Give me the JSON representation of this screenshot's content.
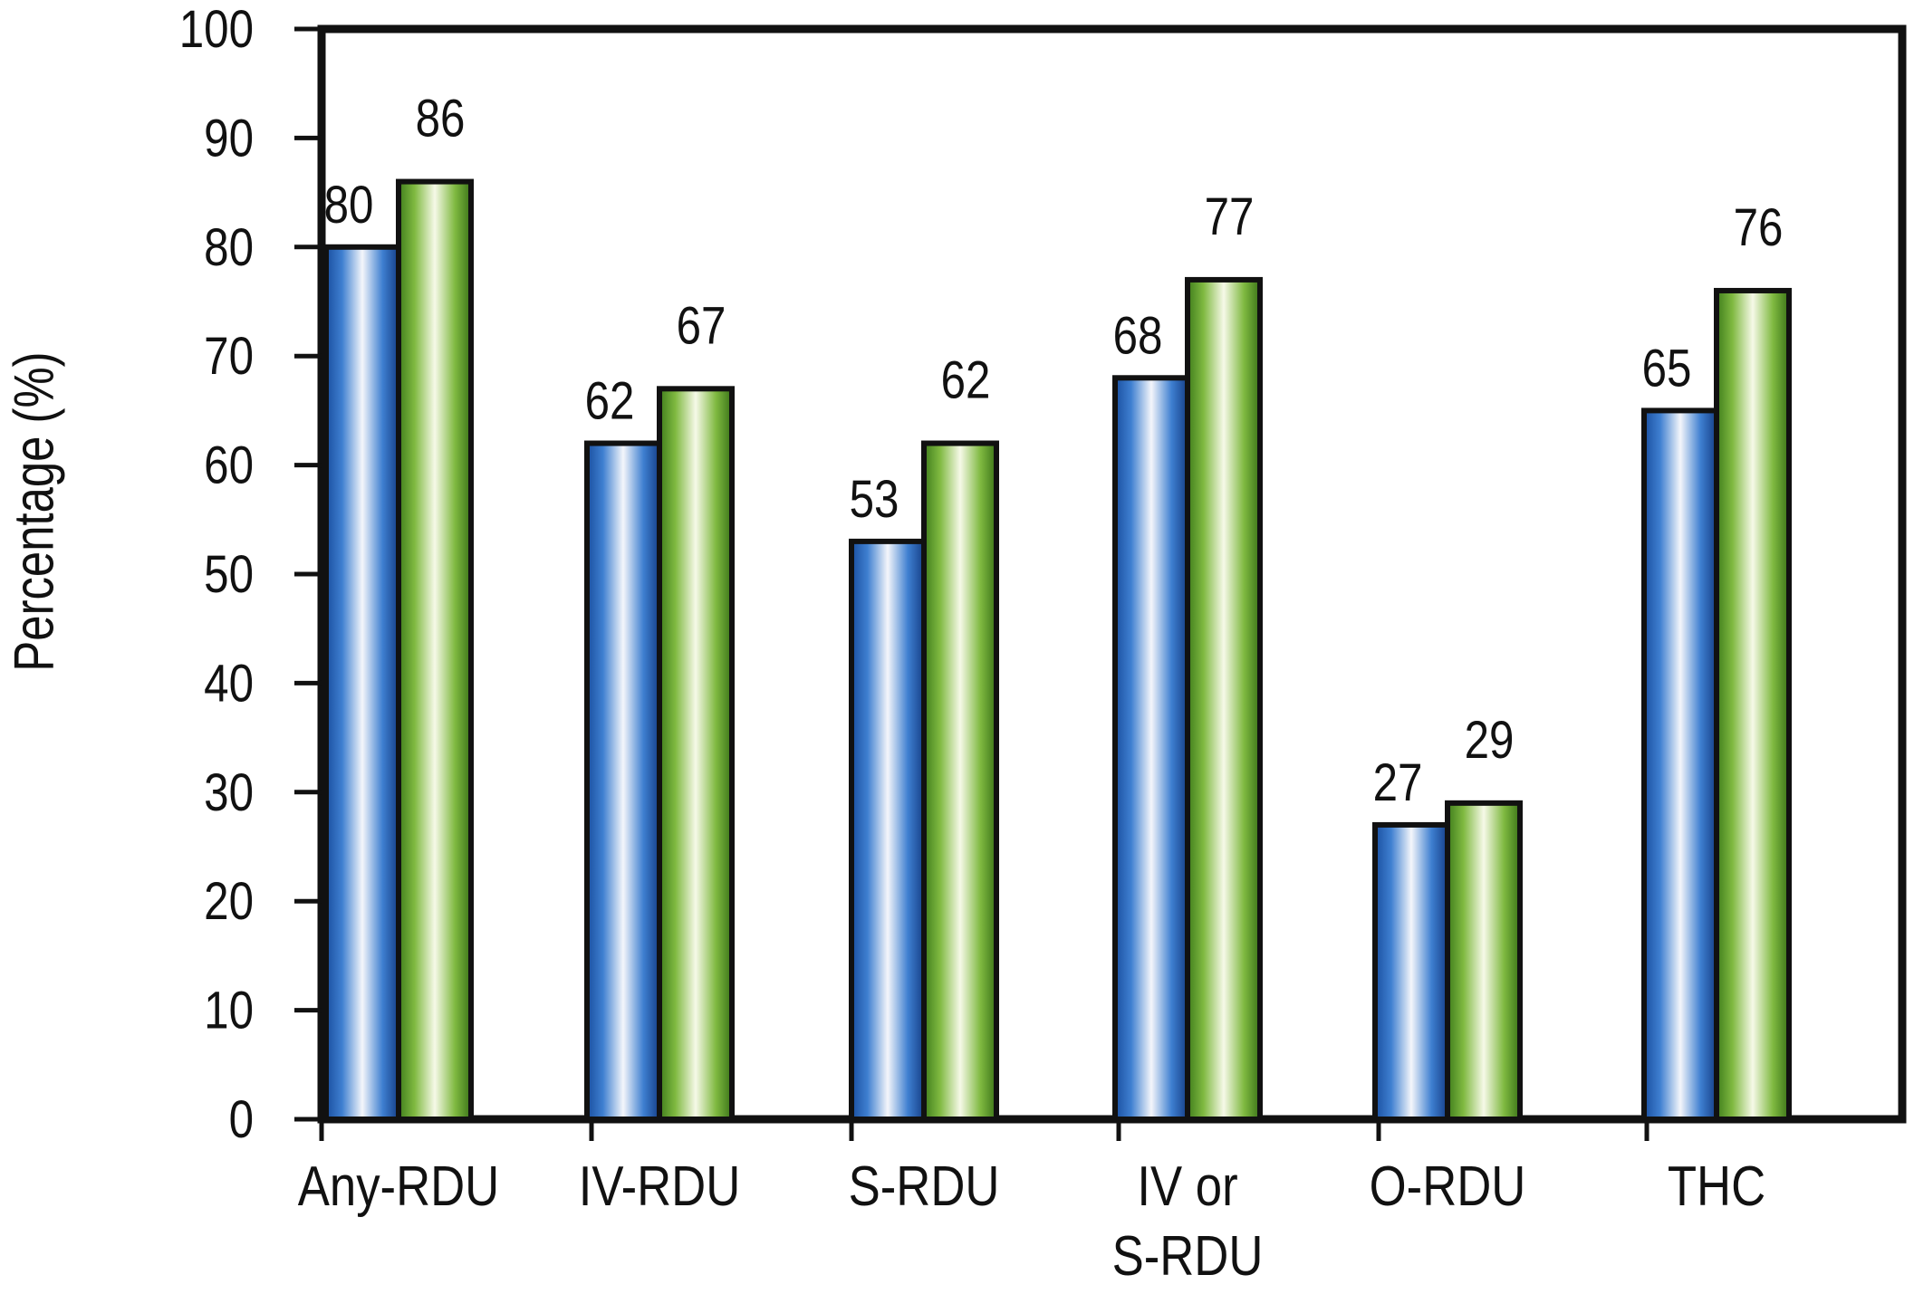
{
  "chart_data": {
    "type": "bar",
    "title": "",
    "xlabel": "",
    "ylabel": "Percentage (%)",
    "ylim": [
      0,
      100
    ],
    "yticks": [
      0,
      10,
      20,
      30,
      40,
      50,
      60,
      70,
      80,
      90,
      100
    ],
    "categories": [
      [
        "Any-RDU"
      ],
      [
        "IV-RDU"
      ],
      [
        "S-RDU"
      ],
      [
        "IV or",
        "S-RDU"
      ],
      [
        "O-RDU"
      ],
      [
        "THC"
      ]
    ],
    "series": [
      {
        "values": [
          80,
          62,
          53,
          68,
          27,
          65
        ],
        "color": "#1f5fb0"
      },
      {
        "values": [
          86,
          67,
          62,
          77,
          29,
          76
        ],
        "color": "#5a9a2a"
      }
    ],
    "grid": false,
    "legend": "none"
  }
}
